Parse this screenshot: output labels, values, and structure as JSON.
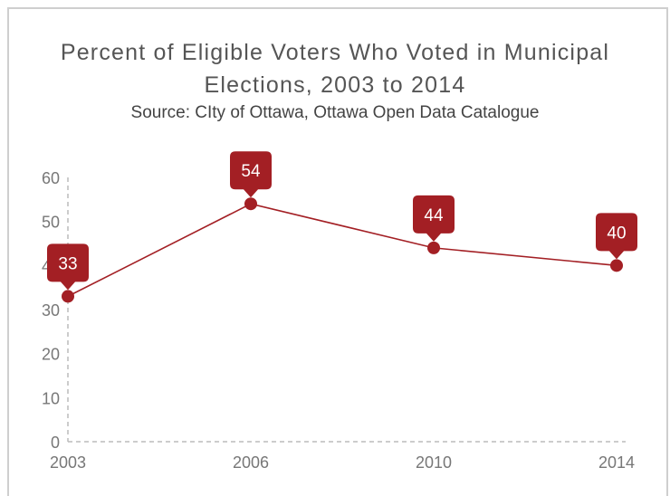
{
  "chart_data": {
    "type": "line",
    "title_line1": "Percent of Eligible Voters Who Voted in Municipal",
    "title_line2": "Elections, 2003 to 2014",
    "subtitle": "Source:  CIty of Ottawa, Ottawa Open Data Catalogue",
    "categories": [
      "2003",
      "2006",
      "2010",
      "2014"
    ],
    "values": [
      33,
      54,
      44,
      40
    ],
    "data_labels": [
      "33",
      "54",
      "44",
      "40"
    ],
    "yticks": [
      "0",
      "10",
      "20",
      "30",
      "40",
      "50",
      "60"
    ],
    "ylim": [
      0,
      60
    ],
    "grid": false,
    "colors": {
      "series": "#a31f24",
      "axis": "#bbbbbb",
      "text": "#777777"
    }
  }
}
